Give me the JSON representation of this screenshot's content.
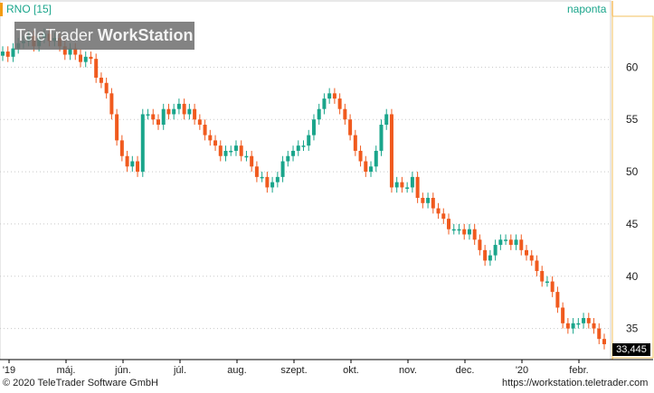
{
  "header": {
    "symbol": "RNO [15]",
    "period": "naponta"
  },
  "watermark": {
    "brand": "TeleTrader",
    "product": "WorkStation"
  },
  "footer": {
    "copyright": "© 2020 TeleTrader Software GmbH",
    "url": "https://workstation.teletrader.com"
  },
  "colors": {
    "up": "#1aa58b",
    "down": "#f05a1e",
    "accent": "#f39c12",
    "grid": "#c8c8c8"
  },
  "chart_data": {
    "type": "candlestick",
    "ylim": [
      32.2,
      66
    ],
    "y_ticks": [
      35,
      40,
      45,
      50,
      55,
      60
    ],
    "x_tick_labels": [
      "'19",
      "máj.",
      "jún.",
      "júl.",
      "aug.",
      "szept.",
      "okt.",
      "nov.",
      "dec.",
      "'20",
      "febr."
    ],
    "last_value": "33,445",
    "series": [
      {
        "values": [
          61.5,
          61.0,
          61.8,
          62.3,
          62.5,
          63.0,
          62.0,
          62.8,
          63.2,
          62.5,
          62.8,
          62.0,
          61.2,
          61.8,
          61.2,
          60.5,
          61.0,
          60.8,
          59.0,
          58.5,
          57.5,
          55.5,
          53.0,
          51.5,
          50.5,
          51.0,
          50.0,
          55.5,
          55.5,
          55.0,
          54.5,
          56.0,
          55.5,
          56.0,
          56.5,
          55.5,
          56.0,
          55.0,
          54.5,
          53.5,
          53.0,
          52.5,
          51.5,
          52.0,
          52.0,
          52.5,
          51.5,
          51.5,
          50.5,
          49.5,
          49.5,
          48.5,
          49.0,
          49.5,
          51.0,
          51.5,
          52.0,
          52.5,
          52.5,
          53.5,
          55.0,
          56.0,
          57.0,
          57.5,
          57.0,
          56.0,
          55.0,
          53.5,
          52.0,
          51.0,
          50.0,
          50.5,
          52.0,
          54.5,
          55.5,
          48.5,
          49.0,
          48.5,
          48.5,
          49.5,
          47.5,
          47.0,
          47.5,
          46.5,
          46.0,
          45.5,
          44.5,
          44.5,
          44.5,
          44.0,
          44.5,
          43.5,
          42.5,
          41.5,
          42.0,
          43.0,
          43.5,
          43.5,
          43.0,
          43.5,
          42.5,
          42.0,
          41.5,
          40.5,
          39.5,
          39.5,
          38.5,
          37.0,
          35.5,
          35.0,
          35.5,
          35.5,
          36.0,
          35.5,
          35.0,
          34.0,
          33.5
        ]
      }
    ]
  }
}
